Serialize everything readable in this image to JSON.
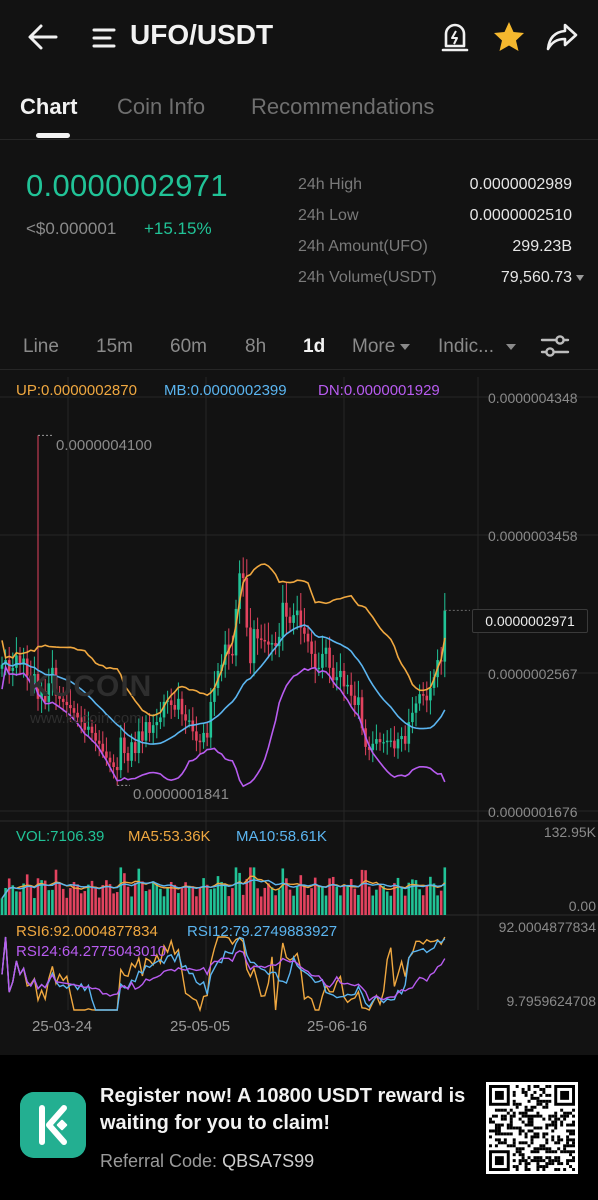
{
  "header": {
    "title": "UFO/USDT",
    "icons": [
      "back-arrow-icon",
      "menu-icon",
      "price-alert-icon",
      "star-icon",
      "share-icon"
    ],
    "star_color": "#f5b82e"
  },
  "tabs": [
    {
      "label": "Chart",
      "active": true
    },
    {
      "label": "Coin Info",
      "active": false
    },
    {
      "label": "Recommendations",
      "active": false
    }
  ],
  "ticker": {
    "last_price": "0.0000002971",
    "fiat_price": "<$0.000001",
    "change_pct": "+15.15%",
    "up_color": "#21c397",
    "stats": [
      {
        "label": "24h High",
        "value": "0.0000002989"
      },
      {
        "label": "24h Low",
        "value": "0.0000002510"
      },
      {
        "label": "24h Amount(UFO)",
        "value": "299.23B"
      },
      {
        "label": "24h Volume(USDT)",
        "value": "79,560.73"
      }
    ]
  },
  "intervals": {
    "items": [
      {
        "label": "Line"
      },
      {
        "label": "15m"
      },
      {
        "label": "60m"
      },
      {
        "label": "8h"
      },
      {
        "label": "1d",
        "active": true
      }
    ],
    "more_label": "More",
    "indicators_label": "Indic..."
  },
  "boll": {
    "up": "UP:0.0000002870",
    "mb": "MB:0.0000002399",
    "dn": "DN:0.0000001929",
    "colors": {
      "up": "#f0a840",
      "mb": "#5bb5f0",
      "dn": "#b85cf0"
    }
  },
  "price_axis": {
    "labels": [
      "0.0000004348",
      "0.0000003458",
      "0.0000002567",
      "0.0000001676"
    ],
    "current_tag": "0.0000002971",
    "high_marker": "0.0000004100",
    "low_marker": "0.0000001841"
  },
  "watermark": {
    "brand": "KUCOIN",
    "url": "www.kucoin.com"
  },
  "volume": {
    "vol": "VOL:7106.39",
    "ma5": "MA5:53.36K",
    "ma10": "MA10:58.61K",
    "axis_max": "132.95K",
    "axis_min": "0.00"
  },
  "rsi": {
    "rsi6": "RSI6:92.0004877834",
    "rsi12": "RSI12:79.2749883927",
    "rsi24": "RSI24:64.2775043010",
    "axis_max": "92.0004877834",
    "axis_min": "9.7959624708"
  },
  "dates": [
    "25-03-24",
    "25-05-05",
    "25-06-16"
  ],
  "chart_data": {
    "type": "candlestick",
    "price_range": [
      1.676e-07,
      4.348e-07
    ],
    "close": [
      2.62e-07,
      2.65e-07,
      2.58e-07,
      2.6e-07,
      2.68e-07,
      2.62e-07,
      2.66e-07,
      2.55e-07,
      2.5e-07,
      2.56e-07,
      2.4e-07,
      2.45e-07,
      2.38e-07,
      2.5e-07,
      2.6e-07,
      2.42e-07,
      2.4e-07,
      2.38e-07,
      2.36e-07,
      2.34e-07,
      2.31e-07,
      2.28e-07,
      2.25e-07,
      2.2e-07,
      2.22e-07,
      2.18e-07,
      2.13e-07,
      2.11e-07,
      2.06e-07,
      2.02e-07,
      1.99e-07,
      1.96e-07,
      1.94e-07,
      2.15e-07,
      2.05e-07,
      2e-07,
      2.12e-07,
      2.05e-07,
      2.19e-07,
      2.13e-07,
      2.25e-07,
      2.18e-07,
      2.23e-07,
      2.25e-07,
      2.28e-07,
      2.38e-07,
      2.39e-07,
      2.36e-07,
      2.33e-07,
      2.4e-07,
      2.3e-07,
      2.26e-07,
      2.26e-07,
      2.19e-07,
      2.13e-07,
      2.12e-07,
      2.18e-07,
      2.15e-07,
      2.38e-07,
      2.47e-07,
      2.58e-07,
      2.62e-07,
      2.75e-07,
      2.69e-07,
      2.68e-07,
      2.98e-07,
      3.21e-07,
      3.18e-07,
      2.86e-07,
      2.63e-07,
      2.85e-07,
      2.79e-07,
      2.78e-07,
      2.77e-07,
      2.75e-07,
      2.76e-07,
      2.74e-07,
      2.8e-07,
      3.02e-07,
      2.93e-07,
      2.89e-07,
      2.94e-07,
      2.97e-07,
      2.86e-07,
      2.82e-07,
      2.77e-07,
      2.69e-07,
      2.6e-07,
      2.6e-07,
      2.69e-07,
      2.73e-07,
      2.6e-07,
      2.52e-07,
      2.54e-07,
      2.58e-07,
      2.48e-07,
      2.49e-07,
      2.42e-07,
      2.36e-07,
      2.41e-07,
      2.21e-07,
      2.09e-07,
      2.07e-07,
      2.11e-07,
      2.14e-07,
      2.12e-07,
      2.12e-07,
      2.13e-07,
      2.13e-07,
      2.08e-07,
      2.14e-07,
      2.16e-07,
      2.11e-07,
      2.25e-07,
      2.31e-07,
      2.37e-07,
      2.43e-07,
      2.42e-07,
      2.39e-07,
      2.47e-07,
      2.54e-07,
      2.65e-07,
      2.64e-07,
      2.97e-07
    ]
  }
}
